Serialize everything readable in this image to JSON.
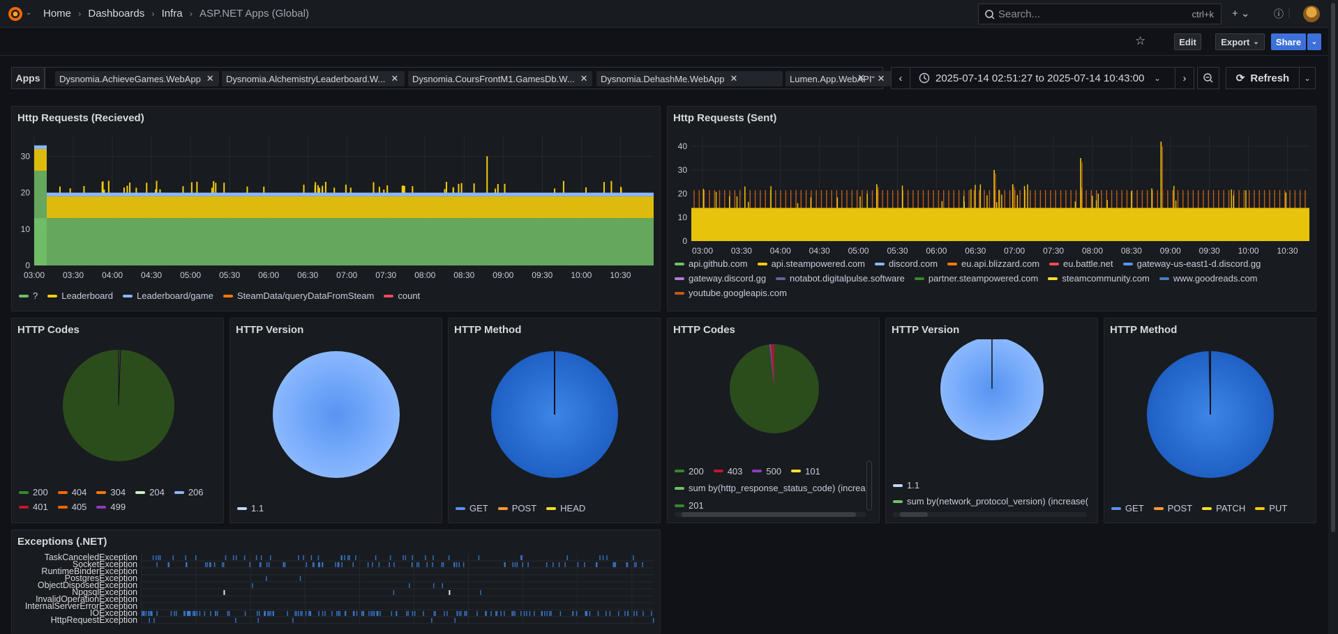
{
  "nav": {
    "breadcrumbs": [
      "Home",
      "Dashboards",
      "Infra"
    ],
    "current": "ASP.NET Apps (Global)",
    "search_placeholder": "Search...",
    "search_shortcut": "ctrl+k"
  },
  "toolbar": {
    "edit_label": "Edit",
    "export_label": "Export",
    "share_label": "Share"
  },
  "variables": {
    "label": "Apps",
    "chips": [
      "Dysnomia.AchieveGames.WebApp",
      "Dysnomia.AlchemistryLeaderboard.W...",
      "Dysnomia.CoursFrontM1.GamesDb.W...",
      "Dysnomia.DehashMe.WebApp",
      "Lumen.App.WebAPI"
    ]
  },
  "timerange": {
    "label": "2025-07-14 02:51:27 to 2025-07-14 10:43:00",
    "refresh_label": "Refresh"
  },
  "colors": {
    "green": "#73bf69",
    "yellow": "#f2cc0c",
    "blue": "#8ab8ff",
    "orange": "#ff780a",
    "red": "#f2495c",
    "purple": "#b877d9",
    "pie_green": "#2b4d1c",
    "pie_blue": "#3d85e6",
    "pie_lightblue": "#8ab8ff"
  },
  "panels": {
    "recv": {
      "title": "Http Requests (Recieved)",
      "y_ticks": [
        "30",
        "20",
        "10",
        "0"
      ],
      "x_ticks": [
        "03:00",
        "03:30",
        "04:00",
        "04:30",
        "05:00",
        "05:30",
        "06:00",
        "06:30",
        "07:00",
        "07:30",
        "08:00",
        "08:30",
        "09:00",
        "09:30",
        "10:00",
        "10:30"
      ],
      "legend": [
        {
          "label": "?",
          "color": "#73bf69"
        },
        {
          "label": "Leaderboard",
          "color": "#f2cc0c"
        },
        {
          "label": "Leaderboard/game",
          "color": "#8ab8ff"
        },
        {
          "label": "SteamData/queryDataFromSteam",
          "color": "#ff780a"
        },
        {
          "label": "count",
          "color": "#f2495c"
        }
      ]
    },
    "sent": {
      "title": "Http Requests (Sent)",
      "y_ticks": [
        "40",
        "30",
        "20",
        "10",
        "0"
      ],
      "x_ticks": [
        "03:00",
        "03:30",
        "04:00",
        "04:30",
        "05:00",
        "05:30",
        "06:00",
        "06:30",
        "07:00",
        "07:30",
        "08:00",
        "08:30",
        "09:00",
        "09:30",
        "10:00",
        "10:30"
      ],
      "legend": [
        {
          "label": "api.github.com",
          "color": "#73bf69"
        },
        {
          "label": "api.steampowered.com",
          "color": "#f2cc0c"
        },
        {
          "label": "discord.com",
          "color": "#8ab8ff"
        },
        {
          "label": "eu.api.blizzard.com",
          "color": "#ff780a"
        },
        {
          "label": "eu.battle.net",
          "color": "#f2495c"
        },
        {
          "label": "gateway-us-east1-d.discord.gg",
          "color": "#5794f2"
        },
        {
          "label": "gateway.discord.gg",
          "color": "#b877d9"
        },
        {
          "label": "notabot.digitalpulse.software",
          "color": "#705da0"
        },
        {
          "label": "partner.steampowered.com",
          "color": "#37872d"
        },
        {
          "label": "steamcommunity.com",
          "color": "#fade2a"
        },
        {
          "label": "www.goodreads.com",
          "color": "#447ebc"
        },
        {
          "label": "youtube.googleapis.com",
          "color": "#c15c17"
        }
      ]
    },
    "codes1": {
      "title": "HTTP Codes",
      "legend": [
        {
          "label": "200",
          "color": "#37872d"
        },
        {
          "label": "404",
          "color": "#fa6400"
        },
        {
          "label": "304",
          "color": "#ff780a"
        },
        {
          "label": "204",
          "color": "#c8f2c2"
        },
        {
          "label": "206",
          "color": "#8ab8ff"
        },
        {
          "label": "401",
          "color": "#c4162a"
        },
        {
          "label": "405",
          "color": "#fa6400"
        },
        {
          "label": "499",
          "color": "#8f3bb8"
        }
      ]
    },
    "version1": {
      "title": "HTTP Version",
      "legend": [
        {
          "label": "1.1",
          "color": "#c0d8ff"
        }
      ]
    },
    "method1": {
      "title": "HTTP Method",
      "legend": [
        {
          "label": "GET",
          "color": "#5794f2"
        },
        {
          "label": "POST",
          "color": "#ff9830"
        },
        {
          "label": "HEAD",
          "color": "#fade2a"
        }
      ]
    },
    "codes2": {
      "title": "HTTP Codes",
      "legend": [
        {
          "label": "200",
          "color": "#37872d"
        },
        {
          "label": "403",
          "color": "#c4162a"
        },
        {
          "label": "500",
          "color": "#8f3bb8"
        },
        {
          "label": "101",
          "color": "#fade2a"
        },
        {
          "label": "sum by(http_response_status_code) (increa",
          "color": "#73bf69"
        },
        {
          "label": "201",
          "color": "#37872d"
        }
      ]
    },
    "version2": {
      "title": "HTTP Version",
      "legend": [
        {
          "label": "1.1",
          "color": "#c0d8ff"
        },
        {
          "label": "sum by(network_protocol_version) (increase(",
          "color": "#73bf69"
        }
      ]
    },
    "method2": {
      "title": "HTTP Method",
      "legend": [
        {
          "label": "GET",
          "color": "#5794f2"
        },
        {
          "label": "POST",
          "color": "#ff9830"
        },
        {
          "label": "PATCH",
          "color": "#fade2a"
        },
        {
          "label": "PUT",
          "color": "#f2cc0c"
        }
      ]
    },
    "exceptions": {
      "title": "Exceptions (.NET)",
      "rows": [
        "TaskCanceledException",
        "SocketException",
        "RuntimeBinderException",
        "PostgresException",
        "ObjectDisposedException",
        "NpgsqlException",
        "InvalidOperationException",
        "InternalServerErrorException",
        "IOException",
        "HttpRequestException"
      ]
    }
  }
}
